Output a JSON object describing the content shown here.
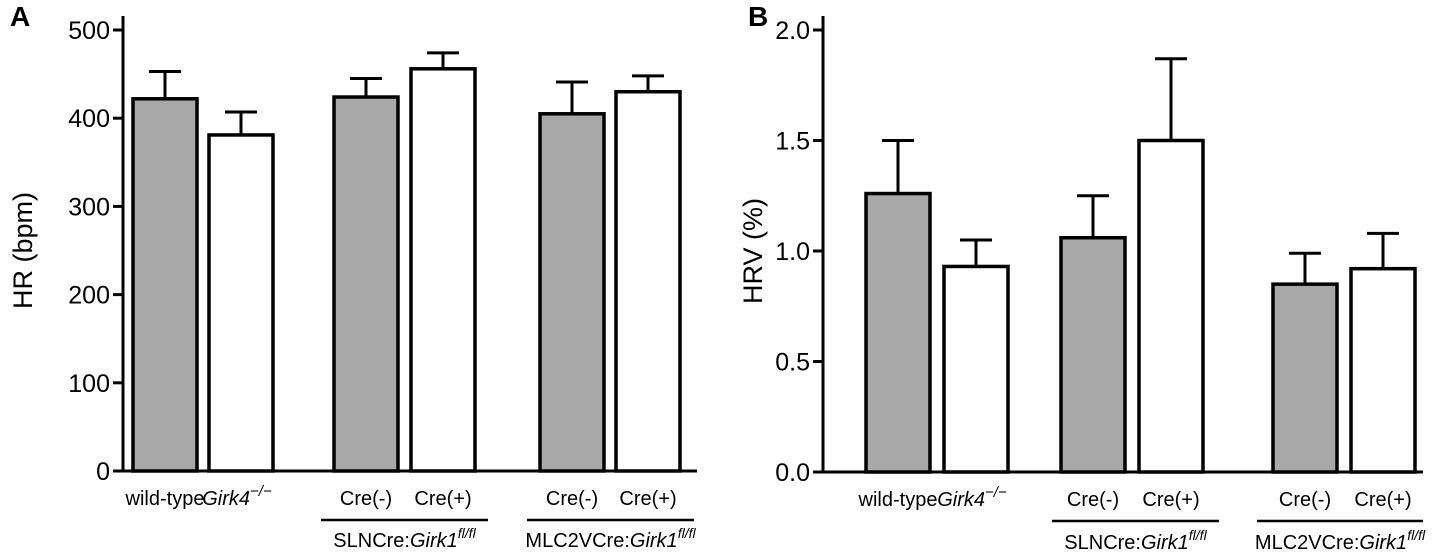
{
  "chart_data": [
    {
      "panel": "A",
      "type": "bar",
      "ylabel": "HR (bpm)",
      "ylim": [
        0,
        500
      ],
      "yticks": [
        "0",
        "100",
        "200",
        "300",
        "400",
        "500"
      ],
      "categories": [
        {
          "label": "wild-type",
          "italic": false,
          "fill": "gray",
          "value": 422,
          "error": 31
        },
        {
          "label": "Girk4",
          "sup": "−/−",
          "italic": true,
          "fill": "white",
          "value": 381,
          "error": 26
        },
        {
          "label": "Cre(-)",
          "italic": false,
          "fill": "gray",
          "value": 424,
          "error": 21
        },
        {
          "label": "Cre(+)",
          "italic": false,
          "fill": "white",
          "value": 456,
          "error": 18
        },
        {
          "label": "Cre(-)",
          "italic": false,
          "fill": "gray",
          "value": 405,
          "error": 36
        },
        {
          "label": "Cre(+)",
          "italic": false,
          "fill": "white",
          "value": 430,
          "error": 18
        }
      ],
      "groups": [
        {
          "prefix": "SLNCre:",
          "gene": "Girk1",
          "sup": "fl/fl"
        },
        {
          "prefix": "MLC2VCre:",
          "gene": "Girk1",
          "sup": "fl/fl"
        }
      ]
    },
    {
      "panel": "B",
      "type": "bar",
      "ylabel": "HRV (%)",
      "ylim": [
        0,
        2.0
      ],
      "yticks": [
        "0.0",
        "0.5",
        "1.0",
        "1.5",
        "2.0"
      ],
      "categories": [
        {
          "label": "wild-type",
          "italic": false,
          "fill": "gray",
          "value": 1.26,
          "error": 0.24
        },
        {
          "label": "Girk4",
          "sup": "−/−",
          "italic": true,
          "fill": "white",
          "value": 0.93,
          "error": 0.12
        },
        {
          "label": "Cre(-)",
          "italic": false,
          "fill": "gray",
          "value": 1.06,
          "error": 0.19
        },
        {
          "label": "Cre(+)",
          "italic": false,
          "fill": "white",
          "value": 1.5,
          "error": 0.37
        },
        {
          "label": "Cre(-)",
          "italic": false,
          "fill": "gray",
          "value": 0.85,
          "error": 0.14
        },
        {
          "label": "Cre(+)",
          "italic": false,
          "fill": "white",
          "value": 0.92,
          "error": 0.16
        }
      ],
      "groups": [
        {
          "prefix": "SLNCre:",
          "gene": "Girk1",
          "sup": "fl/fl"
        },
        {
          "prefix": "MLC2VCre:",
          "gene": "Girk1",
          "sup": "fl/fl"
        }
      ]
    }
  ],
  "colors": {
    "gray_fill": "#a8a8a8",
    "white_fill": "#ffffff",
    "stroke": "#000000"
  }
}
